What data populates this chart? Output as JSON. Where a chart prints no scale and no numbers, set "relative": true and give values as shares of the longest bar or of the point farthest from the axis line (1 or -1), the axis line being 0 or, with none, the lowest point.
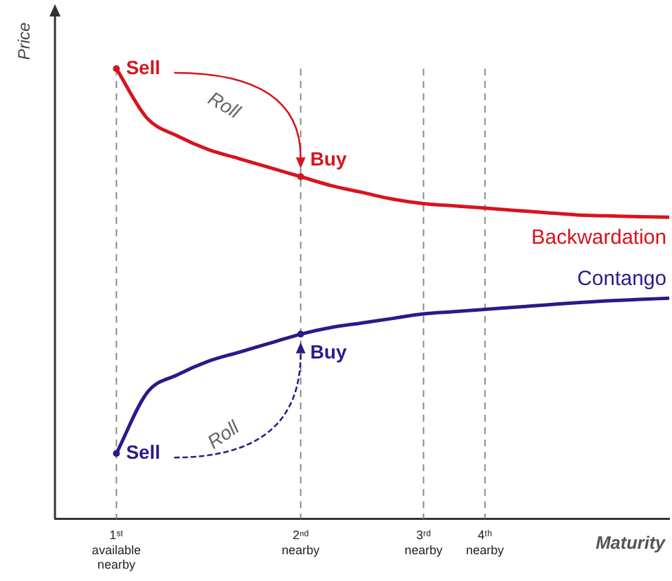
{
  "chart_data": {
    "type": "line",
    "relative": true,
    "ylabel": "Price",
    "xlabel": "Maturity",
    "categories": [
      null,
      null,
      "1ˢᵗ\navailable\nnearby",
      null,
      null,
      null,
      null,
      null,
      "2ⁿᵈ\nnearby",
      null,
      null,
      null,
      "3ʳᵈ\nnearby",
      null,
      "4ᵗʰ\nnearby",
      null,
      null,
      null,
      null,
      null,
      null
    ],
    "series": [
      {
        "name": "Backwardation",
        "color": "#d7141d",
        "values": [
          null,
          null,
          1.0,
          0.89,
          0.85,
          0.82,
          0.8,
          0.78,
          0.76,
          0.74,
          0.725,
          0.71,
          0.7,
          0.695,
          0.69,
          0.685,
          0.68,
          0.675,
          0.673,
          0.671,
          0.67
        ]
      },
      {
        "name": "Contango",
        "color": "#2b1a88",
        "values": [
          null,
          null,
          0.145,
          0.28,
          0.32,
          0.35,
          0.37,
          0.39,
          0.41,
          0.425,
          0.435,
          0.445,
          0.455,
          0.46,
          0.465,
          0.47,
          0.475,
          0.48,
          0.484,
          0.487,
          0.49
        ]
      }
    ],
    "ref_lines": [
      {
        "axis": "x",
        "value": "1ˢᵗ\navailable\nnearby",
        "line_style": "dashed",
        "color": "#888888"
      },
      {
        "axis": "x",
        "value": "2ⁿᵈ\nnearby",
        "line_style": "dashed",
        "color": "#888888"
      },
      {
        "axis": "x",
        "value": "3ʳᵈ\nnearby",
        "line_style": "dashed",
        "color": "#888888"
      },
      {
        "axis": "x",
        "value": "4ᵗʰ\nnearby",
        "line_style": "dashed",
        "color": "#888888"
      }
    ],
    "annotations": [
      {
        "text": "Sell",
        "x": "1ˢᵗ\navailable\nnearby",
        "y": 1.0
      },
      {
        "text": "Buy",
        "x": "2ⁿᵈ\nnearby",
        "y": 0.76
      },
      {
        "text": "Sell",
        "x": "1ˢᵗ\navailable\nnearby",
        "y": 0.145
      },
      {
        "text": "Buy",
        "x": "2ⁿᵈ\nnearby",
        "y": 0.41
      },
      "Roll",
      "Roll"
    ],
    "legend": false,
    "grid": false,
    "marker": "none",
    "line_style": "solid"
  }
}
